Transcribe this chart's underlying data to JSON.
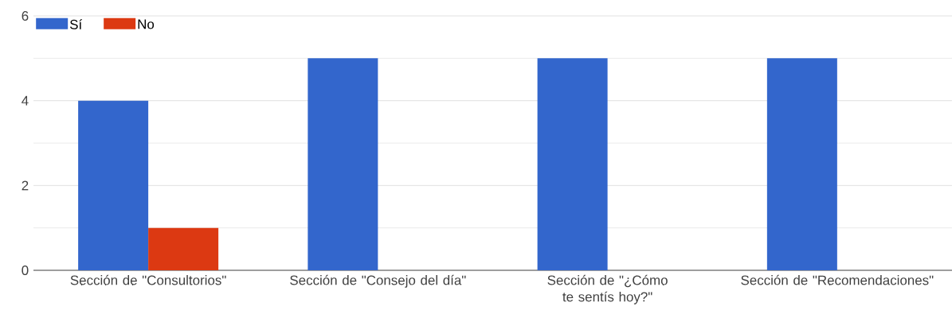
{
  "chart_data": {
    "type": "bar",
    "categories": [
      "Sección de \"Consultorios\"",
      "Sección de \"Consejo del día\"",
      "Sección de \"¿Cómo te sentís hoy?\"",
      "Sección de \"Recomendaciones\""
    ],
    "series": [
      {
        "name": "Sí",
        "color": "#3366cc",
        "values": [
          4,
          5,
          5,
          5
        ]
      },
      {
        "name": "No",
        "color": "#dc3912",
        "values": [
          1,
          0,
          0,
          0
        ]
      }
    ],
    "ylim": [
      0,
      6
    ],
    "yticks": [
      0,
      2,
      4,
      6
    ],
    "grid": "y",
    "legend": "top left"
  }
}
